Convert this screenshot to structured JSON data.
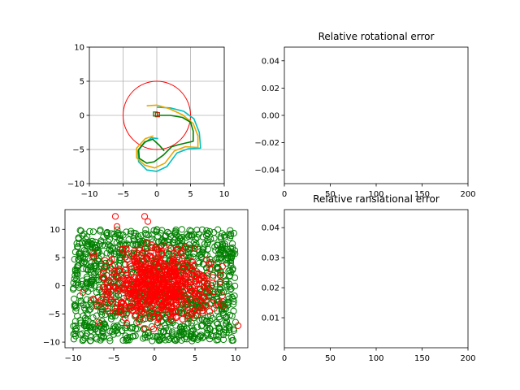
{
  "chart_data": [
    {
      "type": "line",
      "subplot": "top-left",
      "title": "",
      "xlim": [
        -10,
        10
      ],
      "ylim": [
        -10,
        10
      ],
      "xticks": [
        -10,
        -5,
        0,
        5,
        10
      ],
      "yticks": [
        -10,
        -5,
        0,
        5,
        10
      ],
      "grid": true,
      "circle": {
        "center": [
          0,
          0
        ],
        "radius": 5,
        "color": "#ff0000"
      },
      "series": [
        {
          "color": "#00bfbf",
          "points": [
            [
              0,
              1.2
            ],
            [
              2,
              1.1
            ],
            [
              4,
              0.6
            ],
            [
              5.5,
              -0.5
            ],
            [
              6.3,
              -2.5
            ],
            [
              6.5,
              -4.8
            ],
            [
              4.6,
              -4.9
            ],
            [
              3,
              -5.5
            ],
            [
              1.5,
              -7.5
            ],
            [
              0,
              -8.2
            ],
            [
              -1.5,
              -8
            ],
            [
              -2.7,
              -6.8
            ],
            [
              -2.8,
              -5.2
            ],
            [
              -1.8,
              -4
            ],
            [
              -0.8,
              -3.3
            ],
            [
              0.2,
              -3.4
            ]
          ]
        },
        {
          "color": "#e6a700",
          "points": [
            [
              -1.5,
              1.4
            ],
            [
              0,
              1.5
            ],
            [
              1.8,
              1
            ],
            [
              3.8,
              0.1
            ],
            [
              5.4,
              -1.2
            ],
            [
              6.1,
              -3
            ],
            [
              6.1,
              -4.7
            ],
            [
              4.2,
              -4.6
            ],
            [
              2.6,
              -5.2
            ],
            [
              1.2,
              -7
            ],
            [
              -0.3,
              -7.7
            ],
            [
              -1.8,
              -7.3
            ],
            [
              -3,
              -6.2
            ],
            [
              -3,
              -4.8
            ],
            [
              -1.7,
              -3.4
            ],
            [
              -0.5,
              -3
            ]
          ]
        },
        {
          "color": "#008000",
          "points": [
            [
              0,
              0
            ],
            [
              2,
              0
            ],
            [
              3.8,
              -0.3
            ],
            [
              5,
              -1
            ],
            [
              5.4,
              -2.3
            ],
            [
              5.4,
              -3.8
            ],
            [
              3.2,
              -4.3
            ],
            [
              2.2,
              -4.6
            ],
            [
              1,
              -5.8
            ],
            [
              -0.4,
              -6.8
            ],
            [
              -1.5,
              -7
            ],
            [
              -2.6,
              -6.3
            ],
            [
              -2.7,
              -5
            ],
            [
              -1.8,
              -3.9
            ],
            [
              -0.6,
              -3.5
            ],
            [
              0.4,
              -4.4
            ],
            [
              1.1,
              -5.2
            ]
          ]
        }
      ],
      "markers": [
        {
          "x": 0.1,
          "y": 0.1,
          "color": "#ff0000"
        },
        {
          "x": -0.2,
          "y": 0.2,
          "color": "#008000"
        }
      ]
    },
    {
      "type": "line",
      "subplot": "top-right",
      "title": "Relative rotational error",
      "xlim": [
        0,
        200
      ],
      "ylim": [
        -0.05,
        0.05
      ],
      "xticks": [
        0,
        50,
        100,
        150,
        200
      ],
      "yticks": [
        -0.04,
        -0.02,
        0.0,
        0.02,
        0.04
      ],
      "ytick_labels": [
        "−0.04",
        "−0.02",
        "0.00",
        "0.02",
        "0.04"
      ],
      "series": []
    },
    {
      "type": "scatter",
      "subplot": "bottom-left",
      "title": "",
      "xlim": [
        -11,
        11.5
      ],
      "ylim": [
        -11,
        13.5
      ],
      "xticks": [
        -10,
        -5,
        0,
        5,
        10
      ],
      "yticks": [
        -10,
        -5,
        0,
        5,
        10
      ],
      "series": [
        {
          "color": "#008000",
          "marker": "open-circle",
          "count": 1200,
          "xrange": [
            -10,
            10
          ],
          "yrange": [
            -9.8,
            10
          ]
        },
        {
          "color": "#ff0000",
          "marker": "open-circle",
          "count": 650,
          "xrange": [
            -9,
            10
          ],
          "yrange": [
            -9,
            9
          ],
          "outliers": [
            [
              -4.8,
              12.3
            ],
            [
              -1.2,
              12.3
            ],
            [
              -0.8,
              11.4
            ],
            [
              -4.6,
              10.5
            ],
            [
              -1.8,
              6.3
            ],
            [
              10.3,
              -7.1
            ],
            [
              -8.8,
              -1.2
            ]
          ]
        }
      ]
    },
    {
      "type": "line",
      "subplot": "bottom-right",
      "title": "Relative ransiational error",
      "xlim": [
        0,
        200
      ],
      "ylim": [
        0,
        0.046
      ],
      "xticks": [
        0,
        50,
        100,
        150,
        200
      ],
      "yticks": [
        0.01,
        0.02,
        0.03,
        0.04
      ],
      "series": []
    }
  ]
}
